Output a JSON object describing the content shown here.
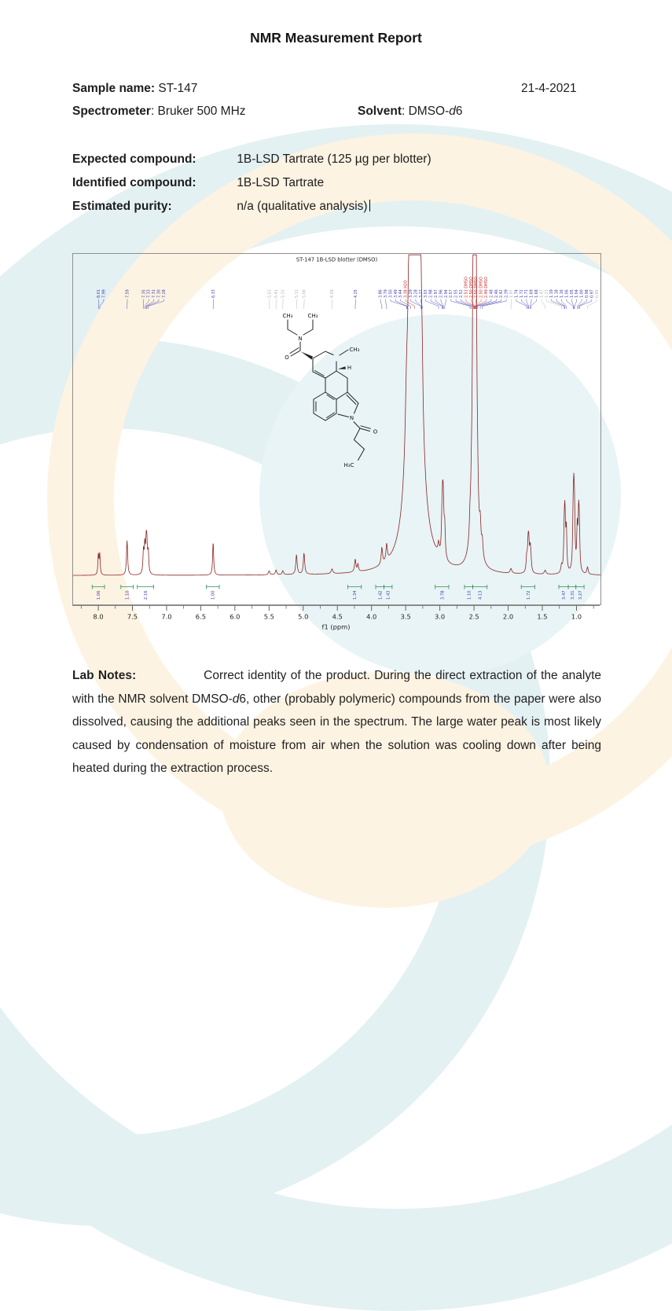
{
  "header": {
    "title": "NMR Measurement Report"
  },
  "info": {
    "sample_label": "Sample name:",
    "sample_value": "ST-147",
    "date": "21-4-2021",
    "spectrometer_label": "Spectrometer",
    "spectrometer_value": ": Bruker 500 MHz",
    "solvent_label": "Solvent",
    "solvent_value_pre": ": DMSO-",
    "solvent_value_italic": "d",
    "solvent_value_post": "6"
  },
  "compound": {
    "expected_label": "Expected compound:",
    "expected_value": "1B-LSD Tartrate (125 µg per blotter)",
    "identified_label": "Identified compound:",
    "identified_value": "1B-LSD Tartrate",
    "purity_label": "Estimated purity:",
    "purity_value": "n/a (qualitative analysis)"
  },
  "structure": {
    "labels": [
      "CH₃",
      "CH₃",
      "N",
      "O",
      "CH₃",
      "H",
      "N",
      "O",
      "H₃C"
    ]
  },
  "chart_data": {
    "type": "line",
    "title": "ST-147 1B-LSD blotter (DMSO)",
    "xlabel": "f1 (ppm)",
    "x_axis": {
      "ppm_left": 8.38,
      "ppm_right": 0.66,
      "reversed": true
    },
    "x_ticks": [
      8.0,
      7.5,
      7.0,
      6.5,
      6.0,
      5.5,
      5.0,
      4.5,
      4.0,
      3.5,
      3.0,
      2.5,
      2.0,
      1.5,
      1.0
    ],
    "grid": false,
    "legend": "none",
    "colors": {
      "spectrum": "#8b2424",
      "label_blue": "#3a3aae",
      "label_red": "#cc2121",
      "label_gray": "#b0b0b0",
      "integral_green": "#2f8f4e",
      "axis": "#555555"
    },
    "peaks": [
      [
        8.01,
        26,
        0.008
      ],
      [
        7.99,
        26,
        0.008
      ],
      [
        7.59,
        44,
        0.01
      ],
      [
        7.35,
        28,
        0.009
      ],
      [
        7.33,
        34,
        0.009
      ],
      [
        7.31,
        34,
        0.009
      ],
      [
        7.3,
        30,
        0.009
      ],
      [
        7.28,
        26,
        0.009
      ],
      [
        6.33,
        42,
        0.009
      ],
      [
        5.51,
        5,
        0.012
      ],
      [
        5.41,
        6,
        0.012
      ],
      [
        5.31,
        5,
        0.012
      ],
      [
        5.11,
        25,
        0.012
      ],
      [
        5.0,
        27,
        0.012
      ],
      [
        4.59,
        6,
        0.015
      ],
      [
        4.25,
        16,
        0.012
      ],
      [
        4.21,
        9,
        0.01
      ],
      [
        3.86,
        21,
        0.012
      ],
      [
        3.79,
        21,
        0.012
      ],
      [
        3.5,
        55,
        0.02
      ],
      [
        3.44,
        90,
        0.025
      ],
      [
        3.38,
        3500,
        0.03
      ],
      [
        3.29,
        70,
        0.015
      ],
      [
        3.27,
        45,
        0.012
      ],
      [
        3.03,
        13,
        0.012
      ],
      [
        2.98,
        38,
        0.01
      ],
      [
        2.97,
        52,
        0.01
      ],
      [
        2.96,
        52,
        0.01
      ],
      [
        2.94,
        38,
        0.01
      ],
      [
        2.57,
        20,
        0.01
      ],
      [
        2.55,
        25,
        0.01
      ],
      [
        2.52,
        32,
        0.012
      ],
      [
        2.503,
        4500,
        0.008
      ],
      [
        2.48,
        36,
        0.01
      ],
      [
        2.46,
        28,
        0.01
      ],
      [
        2.42,
        30,
        0.012
      ],
      [
        2.39,
        20,
        0.012
      ],
      [
        1.97,
        6,
        0.015
      ],
      [
        1.74,
        18,
        0.01
      ],
      [
        1.72,
        30,
        0.01
      ],
      [
        1.71,
        30,
        0.01
      ],
      [
        1.69,
        23,
        0.01
      ],
      [
        1.68,
        16,
        0.01
      ],
      [
        1.47,
        5,
        0.015
      ],
      [
        1.23,
        9,
        0.012
      ],
      [
        1.19,
        48,
        0.009
      ],
      [
        1.18,
        62,
        0.009
      ],
      [
        1.16,
        52,
        0.009
      ],
      [
        1.06,
        58,
        0.009
      ],
      [
        1.05,
        74,
        0.009
      ],
      [
        1.04,
        58,
        0.009
      ],
      [
        1.0,
        52,
        0.009
      ],
      [
        0.98,
        62,
        0.009
      ],
      [
        0.97,
        46,
        0.009
      ],
      [
        0.85,
        9,
        0.012
      ]
    ],
    "peak_labels": [
      [
        8.01,
        "8.01",
        "blue"
      ],
      [
        7.99,
        "7.99",
        "blue"
      ],
      [
        7.59,
        "7.59",
        "blue"
      ],
      [
        7.35,
        "7.35",
        "blue"
      ],
      [
        7.33,
        "7.33",
        "blue"
      ],
      [
        7.31,
        "7.31",
        "blue"
      ],
      [
        7.3,
        "7.30",
        "blue"
      ],
      [
        7.28,
        "7.28",
        "blue"
      ],
      [
        6.33,
        "6.33",
        "blue"
      ],
      [
        5.51,
        "5.51",
        "gray"
      ],
      [
        5.41,
        "5.41",
        "gray"
      ],
      [
        5.31,
        "5.31",
        "gray"
      ],
      [
        5.11,
        "5.11",
        "gray"
      ],
      [
        5.0,
        "5.00",
        "gray"
      ],
      [
        4.59,
        "4.59",
        "gray"
      ],
      [
        4.25,
        "4.25",
        "blue"
      ],
      [
        3.86,
        "3.86",
        "blue"
      ],
      [
        3.79,
        "3.79",
        "blue"
      ],
      [
        3.5,
        "3.50",
        "blue"
      ],
      [
        3.49,
        "3.49",
        "blue"
      ],
      [
        3.44,
        "3.44",
        "blue"
      ],
      [
        3.38,
        "3.38 H2O",
        "red"
      ],
      [
        3.29,
        "3.29",
        "blue"
      ],
      [
        3.28,
        "3.28",
        "blue"
      ],
      [
        3.27,
        "3.27",
        "blue"
      ],
      [
        3.03,
        "3.03",
        "blue"
      ],
      [
        2.98,
        "2.98",
        "blue"
      ],
      [
        2.97,
        "2.97",
        "blue"
      ],
      [
        2.96,
        "2.96",
        "blue"
      ],
      [
        2.94,
        "2.94",
        "blue"
      ],
      [
        2.57,
        "2.57",
        "blue"
      ],
      [
        2.55,
        "2.55",
        "blue"
      ],
      [
        2.52,
        "2.52",
        "blue"
      ],
      [
        2.51,
        "2.51 DMSO",
        "red"
      ],
      [
        2.505,
        "2.50 DMSO",
        "red"
      ],
      [
        2.5,
        "2.50 DMSO",
        "red"
      ],
      [
        2.495,
        "2.50 DMSO",
        "red"
      ],
      [
        2.49,
        "2.49 DMSO",
        "red"
      ],
      [
        2.48,
        "2.48",
        "blue"
      ],
      [
        2.46,
        "2.46",
        "blue"
      ],
      [
        2.42,
        "2.42",
        "blue"
      ],
      [
        2.39,
        "2.39",
        "blue"
      ],
      [
        1.97,
        "1.97",
        "gray"
      ],
      [
        1.74,
        "1.74",
        "blue"
      ],
      [
        1.72,
        "1.72",
        "blue"
      ],
      [
        1.71,
        "1.71",
        "blue"
      ],
      [
        1.69,
        "1.69",
        "blue"
      ],
      [
        1.68,
        "1.68",
        "blue"
      ],
      [
        1.47,
        "1.47",
        "gray"
      ],
      [
        1.23,
        "1.23",
        "gray"
      ],
      [
        1.19,
        "1.19",
        "blue"
      ],
      [
        1.18,
        "1.18",
        "blue"
      ],
      [
        1.16,
        "1.16",
        "blue"
      ],
      [
        1.06,
        "1.06",
        "blue"
      ],
      [
        1.05,
        "1.05",
        "blue"
      ],
      [
        1.04,
        "1.04",
        "blue"
      ],
      [
        1.0,
        "1.00",
        "blue"
      ],
      [
        0.98,
        "0.98",
        "blue"
      ],
      [
        0.97,
        "0.97",
        "blue"
      ],
      [
        0.85,
        "0.85",
        "gray"
      ]
    ],
    "integrals": [
      [
        8.1,
        7.92,
        "1.06"
      ],
      [
        7.68,
        7.5,
        "1.10"
      ],
      [
        7.44,
        7.2,
        "2.16"
      ],
      [
        6.43,
        6.24,
        "1.00"
      ],
      [
        4.36,
        4.16,
        "1.34"
      ],
      [
        3.95,
        3.83,
        "1.42"
      ],
      [
        3.83,
        3.71,
        "1.43"
      ],
      [
        3.08,
        2.88,
        "3.78"
      ],
      [
        2.65,
        2.53,
        "1.10"
      ],
      [
        2.53,
        2.32,
        "4.13"
      ],
      [
        1.82,
        1.62,
        "1.72"
      ],
      [
        1.27,
        1.13,
        "3.47"
      ],
      [
        1.13,
        1.02,
        "3.31"
      ],
      [
        1.02,
        0.9,
        "3.27"
      ]
    ]
  },
  "lab_notes": {
    "label": "Lab Notes:",
    "text_pre": "Correct identity of the product. During the direct extraction of the analyte with the NMR solvent DMSO-",
    "text_italic": "d",
    "text_post": "6, other (probably polymeric) compounds from the paper were also dissolved, causing the additional peaks seen in the spectrum. The large water peak is most likely caused by condensation of moisture from air when the solution was cooling down after being heated during the extraction process."
  }
}
